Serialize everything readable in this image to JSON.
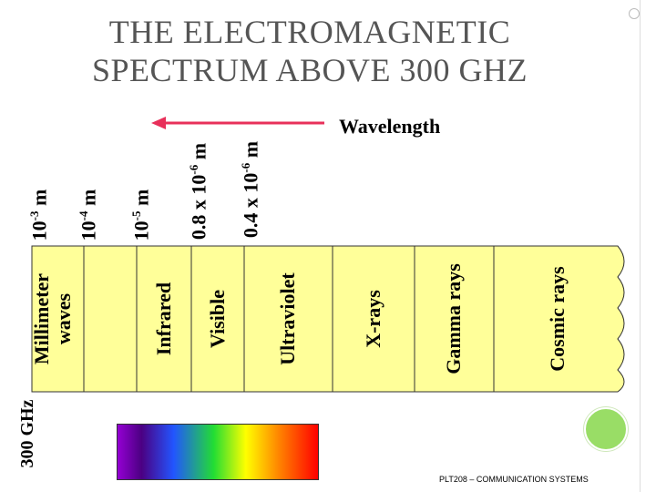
{
  "title_line1": "THE ELECTROMAGNETIC",
  "title_line2": "SPECTRUM ABOVE 300 GHZ",
  "axis_label": "Wavelength",
  "frequency_label": "300 GHz",
  "wavelengths": [
    {
      "base": "10",
      "exp": "-3",
      "unit": " m"
    },
    {
      "base": "10",
      "exp": "-4",
      "unit": " m"
    },
    {
      "base": "10",
      "exp": "-5",
      "unit": " m"
    },
    {
      "base": "0.8 x 10",
      "exp": "-6",
      "unit": " m"
    },
    {
      "base": "0.4 x 10",
      "exp": "-6",
      "unit": " m"
    }
  ],
  "bands": [
    {
      "line1": "Millimeter",
      "line2": "waves"
    },
    {
      "line1": "",
      "line2": ""
    },
    {
      "line1": "Infrared",
      "line2": ""
    },
    {
      "line1": "Visible",
      "line2": ""
    },
    {
      "line1": "Ultraviolet",
      "line2": ""
    },
    {
      "line1": "X-rays",
      "line2": ""
    },
    {
      "line1": "Gamma rays",
      "line2": ""
    },
    {
      "line1": "Cosmic rays",
      "line2": ""
    }
  ],
  "footer": "PLT208 – COMMUNICATION SYSTEMS",
  "colors": {
    "band_fill": "#ffff99",
    "arrow": "#e8305a",
    "title": "#555555",
    "accent_circle": "#99dd66"
  }
}
